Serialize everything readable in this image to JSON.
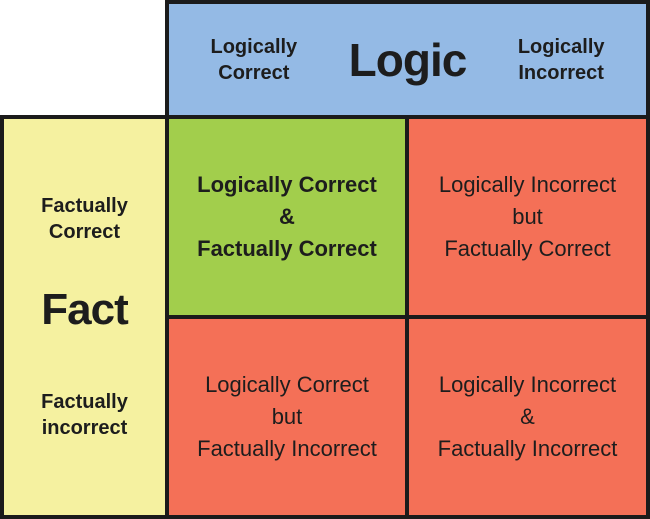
{
  "colors": {
    "header_bg": "#94bae5",
    "fact_bg": "#f5f1a0",
    "match_bg": "#a2ce4c",
    "mismatch_bg": "#f47057",
    "border": "#1b1b1b",
    "text": "#1d1d1d"
  },
  "header": {
    "title": "Logic",
    "col_left": "Logically\nCorrect",
    "col_right": "Logically\nIncorrect"
  },
  "side": {
    "title": "Fact",
    "row_top": "Factually\nCorrect",
    "row_bottom": "Factually\nincorrect"
  },
  "quadrants": {
    "top_left": "Logically Correct\n&\nFactually Correct",
    "top_right": "Logically Incorrect\nbut\nFactually Correct",
    "bottom_left": "Logically Correct\nbut\nFactually Incorrect",
    "bottom_right": "Logically Incorrect\n&\nFactually Incorrect"
  }
}
